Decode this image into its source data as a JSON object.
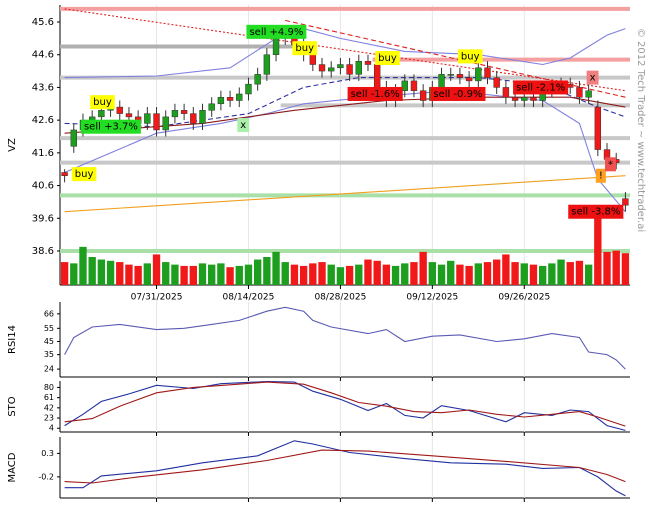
{
  "chart_data": [
    {
      "type": "candlestick",
      "ylabel": "VZ",
      "watermark": "© 2012 Tech Trader ~ www.techtrader.ai",
      "categories": [
        null,
        null,
        null,
        null,
        null,
        null,
        null,
        null,
        null,
        null,
        "07/31/2025",
        null,
        null,
        null,
        null,
        null,
        null,
        null,
        null,
        null,
        "08/14/2025",
        null,
        null,
        null,
        null,
        null,
        null,
        null,
        null,
        null,
        "08/28/2025",
        null,
        null,
        null,
        null,
        null,
        null,
        null,
        null,
        null,
        "09/12/2025",
        null,
        null,
        null,
        null,
        null,
        null,
        null,
        null,
        null,
        "09/26/2025",
        null,
        null,
        null,
        null,
        null,
        null,
        null,
        null,
        null,
        null,
        null
      ],
      "open": [
        41.0,
        41.8,
        42.3,
        42.6,
        42.7,
        42.9,
        43.0,
        42.8,
        42.7,
        42.5,
        42.8,
        42.3,
        42.7,
        42.9,
        42.8,
        42.5,
        42.9,
        43.1,
        43.3,
        43.2,
        43.4,
        43.7,
        44.0,
        44.6,
        45.1,
        45.2,
        44.9,
        44.6,
        44.3,
        44.1,
        44.2,
        44.3,
        44.0,
        44.4,
        44.3,
        43.6,
        43.2,
        43.5,
        43.8,
        43.5,
        43.2,
        43.6,
        44.0,
        44.0,
        43.9,
        43.8,
        44.2,
        43.9,
        43.6,
        43.3,
        43.2,
        43.3,
        43.2,
        43.5,
        43.6,
        43.7,
        43.6,
        43.3,
        43.0,
        41.7,
        41.4,
        40.2
      ],
      "high": [
        41.1,
        42.5,
        42.8,
        42.9,
        43.1,
        43.2,
        43.2,
        43.0,
        42.9,
        43.0,
        43.0,
        42.9,
        43.1,
        43.1,
        43.0,
        43.1,
        43.3,
        43.5,
        43.5,
        43.6,
        43.9,
        44.2,
        44.8,
        45.3,
        45.4,
        45.4,
        45.1,
        44.8,
        44.5,
        44.4,
        44.5,
        44.5,
        44.6,
        44.6,
        44.5,
        43.8,
        43.7,
        44.0,
        44.0,
        43.7,
        43.8,
        44.2,
        44.2,
        44.2,
        44.1,
        44.4,
        44.4,
        44.1,
        43.8,
        43.5,
        43.5,
        43.5,
        43.7,
        43.8,
        43.9,
        43.9,
        43.8,
        43.7,
        43.2,
        41.9,
        41.6,
        40.4
      ],
      "low": [
        40.7,
        41.6,
        42.1,
        42.4,
        42.5,
        42.7,
        42.6,
        42.5,
        42.3,
        42.3,
        42.1,
        42.1,
        42.5,
        42.6,
        42.3,
        42.3,
        42.7,
        42.9,
        43.0,
        43.0,
        43.2,
        43.5,
        43.8,
        44.4,
        44.9,
        44.7,
        44.4,
        44.1,
        43.9,
        43.9,
        44.0,
        43.8,
        43.8,
        44.1,
        43.4,
        43.0,
        43.0,
        43.3,
        43.3,
        43.0,
        43.0,
        43.4,
        43.8,
        43.7,
        43.6,
        43.6,
        43.7,
        43.4,
        43.1,
        43.0,
        43.0,
        43.0,
        43.0,
        43.3,
        43.4,
        43.4,
        43.1,
        43.1,
        41.5,
        41.2,
        41.1,
        39.8
      ],
      "close": [
        40.9,
        42.3,
        42.6,
        42.7,
        42.9,
        43.0,
        42.8,
        42.7,
        42.5,
        42.8,
        42.3,
        42.7,
        42.9,
        42.8,
        42.5,
        42.9,
        43.1,
        43.3,
        43.2,
        43.4,
        43.7,
        44.0,
        44.6,
        45.1,
        45.2,
        44.9,
        44.6,
        44.3,
        44.1,
        44.2,
        44.3,
        44.0,
        44.4,
        44.3,
        43.6,
        43.2,
        43.5,
        43.8,
        43.5,
        43.2,
        43.6,
        44.0,
        44.0,
        43.9,
        43.8,
        44.2,
        43.9,
        43.6,
        43.3,
        43.2,
        43.3,
        43.2,
        43.5,
        43.6,
        43.7,
        43.6,
        43.3,
        43.5,
        41.7,
        41.4,
        41.3,
        40.0
      ],
      "volume": [
        18,
        17,
        30,
        22,
        20,
        19,
        18,
        16,
        15,
        17,
        24,
        18,
        16,
        15,
        15,
        17,
        16,
        17,
        14,
        15,
        16,
        20,
        22,
        26,
        18,
        16,
        15,
        17,
        18,
        16,
        14,
        15,
        16,
        20,
        19,
        16,
        15,
        17,
        18,
        26,
        18,
        16,
        19,
        16,
        15,
        17,
        18,
        20,
        24,
        18,
        17,
        16,
        15,
        17,
        20,
        18,
        19,
        16,
        55,
        26,
        27,
        25
      ],
      "up_color": "#1e9e1e",
      "down_color": "#f01818",
      "ylim": [
        37.56,
        46.12
      ],
      "yticks": [
        38.6,
        39.6,
        40.6,
        41.6,
        42.6,
        43.6,
        44.6,
        45.6
      ],
      "overlays": [
        {
          "color": "#8080e0",
          "style": "solid",
          "x": [
            0,
            10,
            18,
            23,
            26,
            30,
            37,
            45,
            52,
            55,
            59,
            61
          ],
          "values": [
            43.9,
            43.95,
            44.2,
            45.1,
            45.4,
            45.1,
            44.7,
            44.6,
            44.3,
            44.5,
            45.2,
            45.4
          ]
        },
        {
          "color": "#8080e0",
          "style": "solid",
          "x": [
            0,
            5,
            10,
            17,
            22,
            26,
            33,
            42,
            52,
            56,
            58,
            61
          ],
          "values": [
            41.0,
            41.6,
            42.2,
            42.5,
            42.8,
            43.1,
            43.3,
            43.5,
            43.2,
            42.5,
            40.8,
            39.8
          ]
        },
        {
          "color": "#3030a0",
          "style": "dashed",
          "x": [
            0,
            10,
            20,
            26,
            32,
            45,
            52,
            58,
            61
          ],
          "values": [
            42.5,
            42.4,
            42.8,
            43.6,
            43.9,
            43.9,
            43.7,
            43.0,
            42.7
          ]
        },
        {
          "color": "#8b1a1a",
          "style": "solid",
          "x": [
            0,
            15,
            25,
            35,
            45,
            55,
            61
          ],
          "values": [
            42.2,
            42.5,
            42.9,
            43.2,
            43.3,
            43.3,
            43.0
          ]
        },
        {
          "color": "#f0a020",
          "style": "solid",
          "x": [
            0,
            61
          ],
          "values": [
            39.8,
            40.9
          ]
        },
        {
          "color": "#e02020",
          "style": "dotted",
          "x": [
            0,
            61
          ],
          "values": [
            46.0,
            43.5
          ]
        },
        {
          "color": "#e02020",
          "style": "dashed",
          "x": [
            24,
            61
          ],
          "values": [
            45.65,
            43.3
          ]
        }
      ],
      "levels": [
        {
          "value": 46.0,
          "color": "#f4a0a0",
          "x": [
            0,
            61
          ]
        },
        {
          "value": 44.85,
          "color": "#b0b0b0",
          "x": [
            0,
            25
          ]
        },
        {
          "value": 44.45,
          "color": "#f4a0a0",
          "x": [
            34,
            61
          ]
        },
        {
          "value": 43.9,
          "color": "#c8c8c8",
          "x": [
            0,
            61
          ]
        },
        {
          "value": 43.05,
          "color": "#c8c8c8",
          "x": [
            24,
            61
          ]
        },
        {
          "value": 42.05,
          "color": "#c8c8c8",
          "x": [
            0,
            61
          ]
        },
        {
          "value": 41.3,
          "color": "#c8c8c8",
          "x": [
            0,
            61
          ]
        },
        {
          "value": 40.3,
          "color": "#a8e0a8",
          "x": [
            0,
            61
          ]
        },
        {
          "value": 38.6,
          "color": "#a8e0a8",
          "x": [
            0,
            61
          ]
        }
      ],
      "annotations": [
        {
          "text": "buy",
          "x": 1,
          "y": 40.95,
          "color": "#ffff00"
        },
        {
          "text": "buy",
          "x": 3,
          "y": 43.15,
          "color": "#ffff00"
        },
        {
          "text": "sell +3.7%",
          "x": 2,
          "y": 42.4,
          "color": "#22dd22"
        },
        {
          "text": "x",
          "x": 19,
          "y": 42.45,
          "color": "#aaf0aa"
        },
        {
          "text": "sell +4.9%",
          "x": 20,
          "y": 45.3,
          "color": "#22dd22"
        },
        {
          "text": "buy",
          "x": 25,
          "y": 44.8,
          "color": "#ffff00"
        },
        {
          "text": "buy",
          "x": 34,
          "y": 44.5,
          "color": "#ffff00"
        },
        {
          "text": "sell -1.6%",
          "x": 31,
          "y": 43.4,
          "color": "#ee1111"
        },
        {
          "text": "buy",
          "x": 43,
          "y": 44.55,
          "color": "#ffff00"
        },
        {
          "text": "sell -0.9%",
          "x": 40,
          "y": 43.4,
          "color": "#ee1111"
        },
        {
          "text": "sell -2.1%",
          "x": 49,
          "y": 43.6,
          "color": "#ee1111"
        },
        {
          "text": "x",
          "x": 57,
          "y": 43.9,
          "color": "#f08080"
        },
        {
          "text": "!",
          "x": 58,
          "y": 40.9,
          "color": "#ffa020"
        },
        {
          "text": "*",
          "x": 59,
          "y": 41.25,
          "color": "#f05050"
        },
        {
          "text": "sell -3.8%",
          "x": 55,
          "y": 39.8,
          "color": "#ee1111"
        }
      ]
    },
    {
      "type": "line",
      "ylabel": "RSI14",
      "ylim": [
        18,
        75
      ],
      "yticks": [
        24,
        35,
        45,
        55,
        66
      ],
      "series": [
        {
          "color": "#5a5ab4",
          "x": [
            0,
            1,
            3,
            6,
            10,
            13,
            16,
            19,
            22,
            24,
            26,
            27,
            29,
            33,
            35,
            37,
            40,
            43,
            47,
            50,
            53,
            56,
            57,
            59,
            60,
            61
          ],
          "values": [
            35,
            48,
            56,
            58,
            54,
            55,
            58,
            61,
            68,
            71,
            68,
            61,
            56,
            51,
            54,
            45,
            49,
            50,
            45,
            47,
            51,
            48,
            37,
            35,
            31,
            24
          ]
        }
      ]
    },
    {
      "type": "line",
      "ylabel": "STO",
      "ylim": [
        -3,
        92
      ],
      "yticks": [
        4,
        23,
        42,
        61,
        80
      ],
      "series": [
        {
          "color": "#2030a0",
          "x": [
            0,
            2,
            4,
            7,
            10,
            14,
            17,
            22,
            25,
            27,
            30,
            33,
            35,
            37,
            39,
            41,
            44,
            48,
            50,
            53,
            55,
            57,
            59,
            61
          ],
          "values": [
            9,
            30,
            54,
            68,
            84,
            78,
            87,
            91,
            90,
            73,
            58,
            37,
            50,
            28,
            23,
            46,
            37,
            16,
            33,
            28,
            38,
            35,
            9,
            0
          ]
        },
        {
          "color": "#a01818",
          "x": [
            0,
            3,
            6,
            10,
            14,
            18,
            22,
            26,
            29,
            32,
            35,
            38,
            41,
            44,
            47,
            50,
            53,
            56,
            58,
            61
          ],
          "values": [
            16,
            22,
            45,
            70,
            80,
            85,
            90,
            86,
            70,
            52,
            45,
            35,
            33,
            38,
            30,
            25,
            30,
            35,
            25,
            8
          ]
        }
      ]
    },
    {
      "type": "line",
      "ylabel": "MACD",
      "ylim": [
        -0.65,
        0.65
      ],
      "yticks": [
        -0.2,
        0.3
      ],
      "series": [
        {
          "color": "#2030a0",
          "x": [
            0,
            2,
            4,
            10,
            15,
            21,
            25,
            27,
            31,
            37,
            42,
            48,
            52,
            56,
            58,
            60,
            61
          ],
          "values": [
            -0.43,
            -0.43,
            -0.18,
            -0.07,
            0.1,
            0.25,
            0.57,
            0.5,
            0.32,
            0.19,
            0.1,
            0.07,
            -0.02,
            0.0,
            -0.2,
            -0.5,
            -0.6
          ]
        },
        {
          "color": "#a01818",
          "x": [
            0,
            3,
            8,
            15,
            22,
            28,
            33,
            40,
            48,
            56,
            59,
            61
          ],
          "values": [
            -0.3,
            -0.33,
            -0.2,
            -0.05,
            0.15,
            0.37,
            0.35,
            0.25,
            0.13,
            0.0,
            -0.15,
            -0.3
          ]
        }
      ]
    }
  ]
}
